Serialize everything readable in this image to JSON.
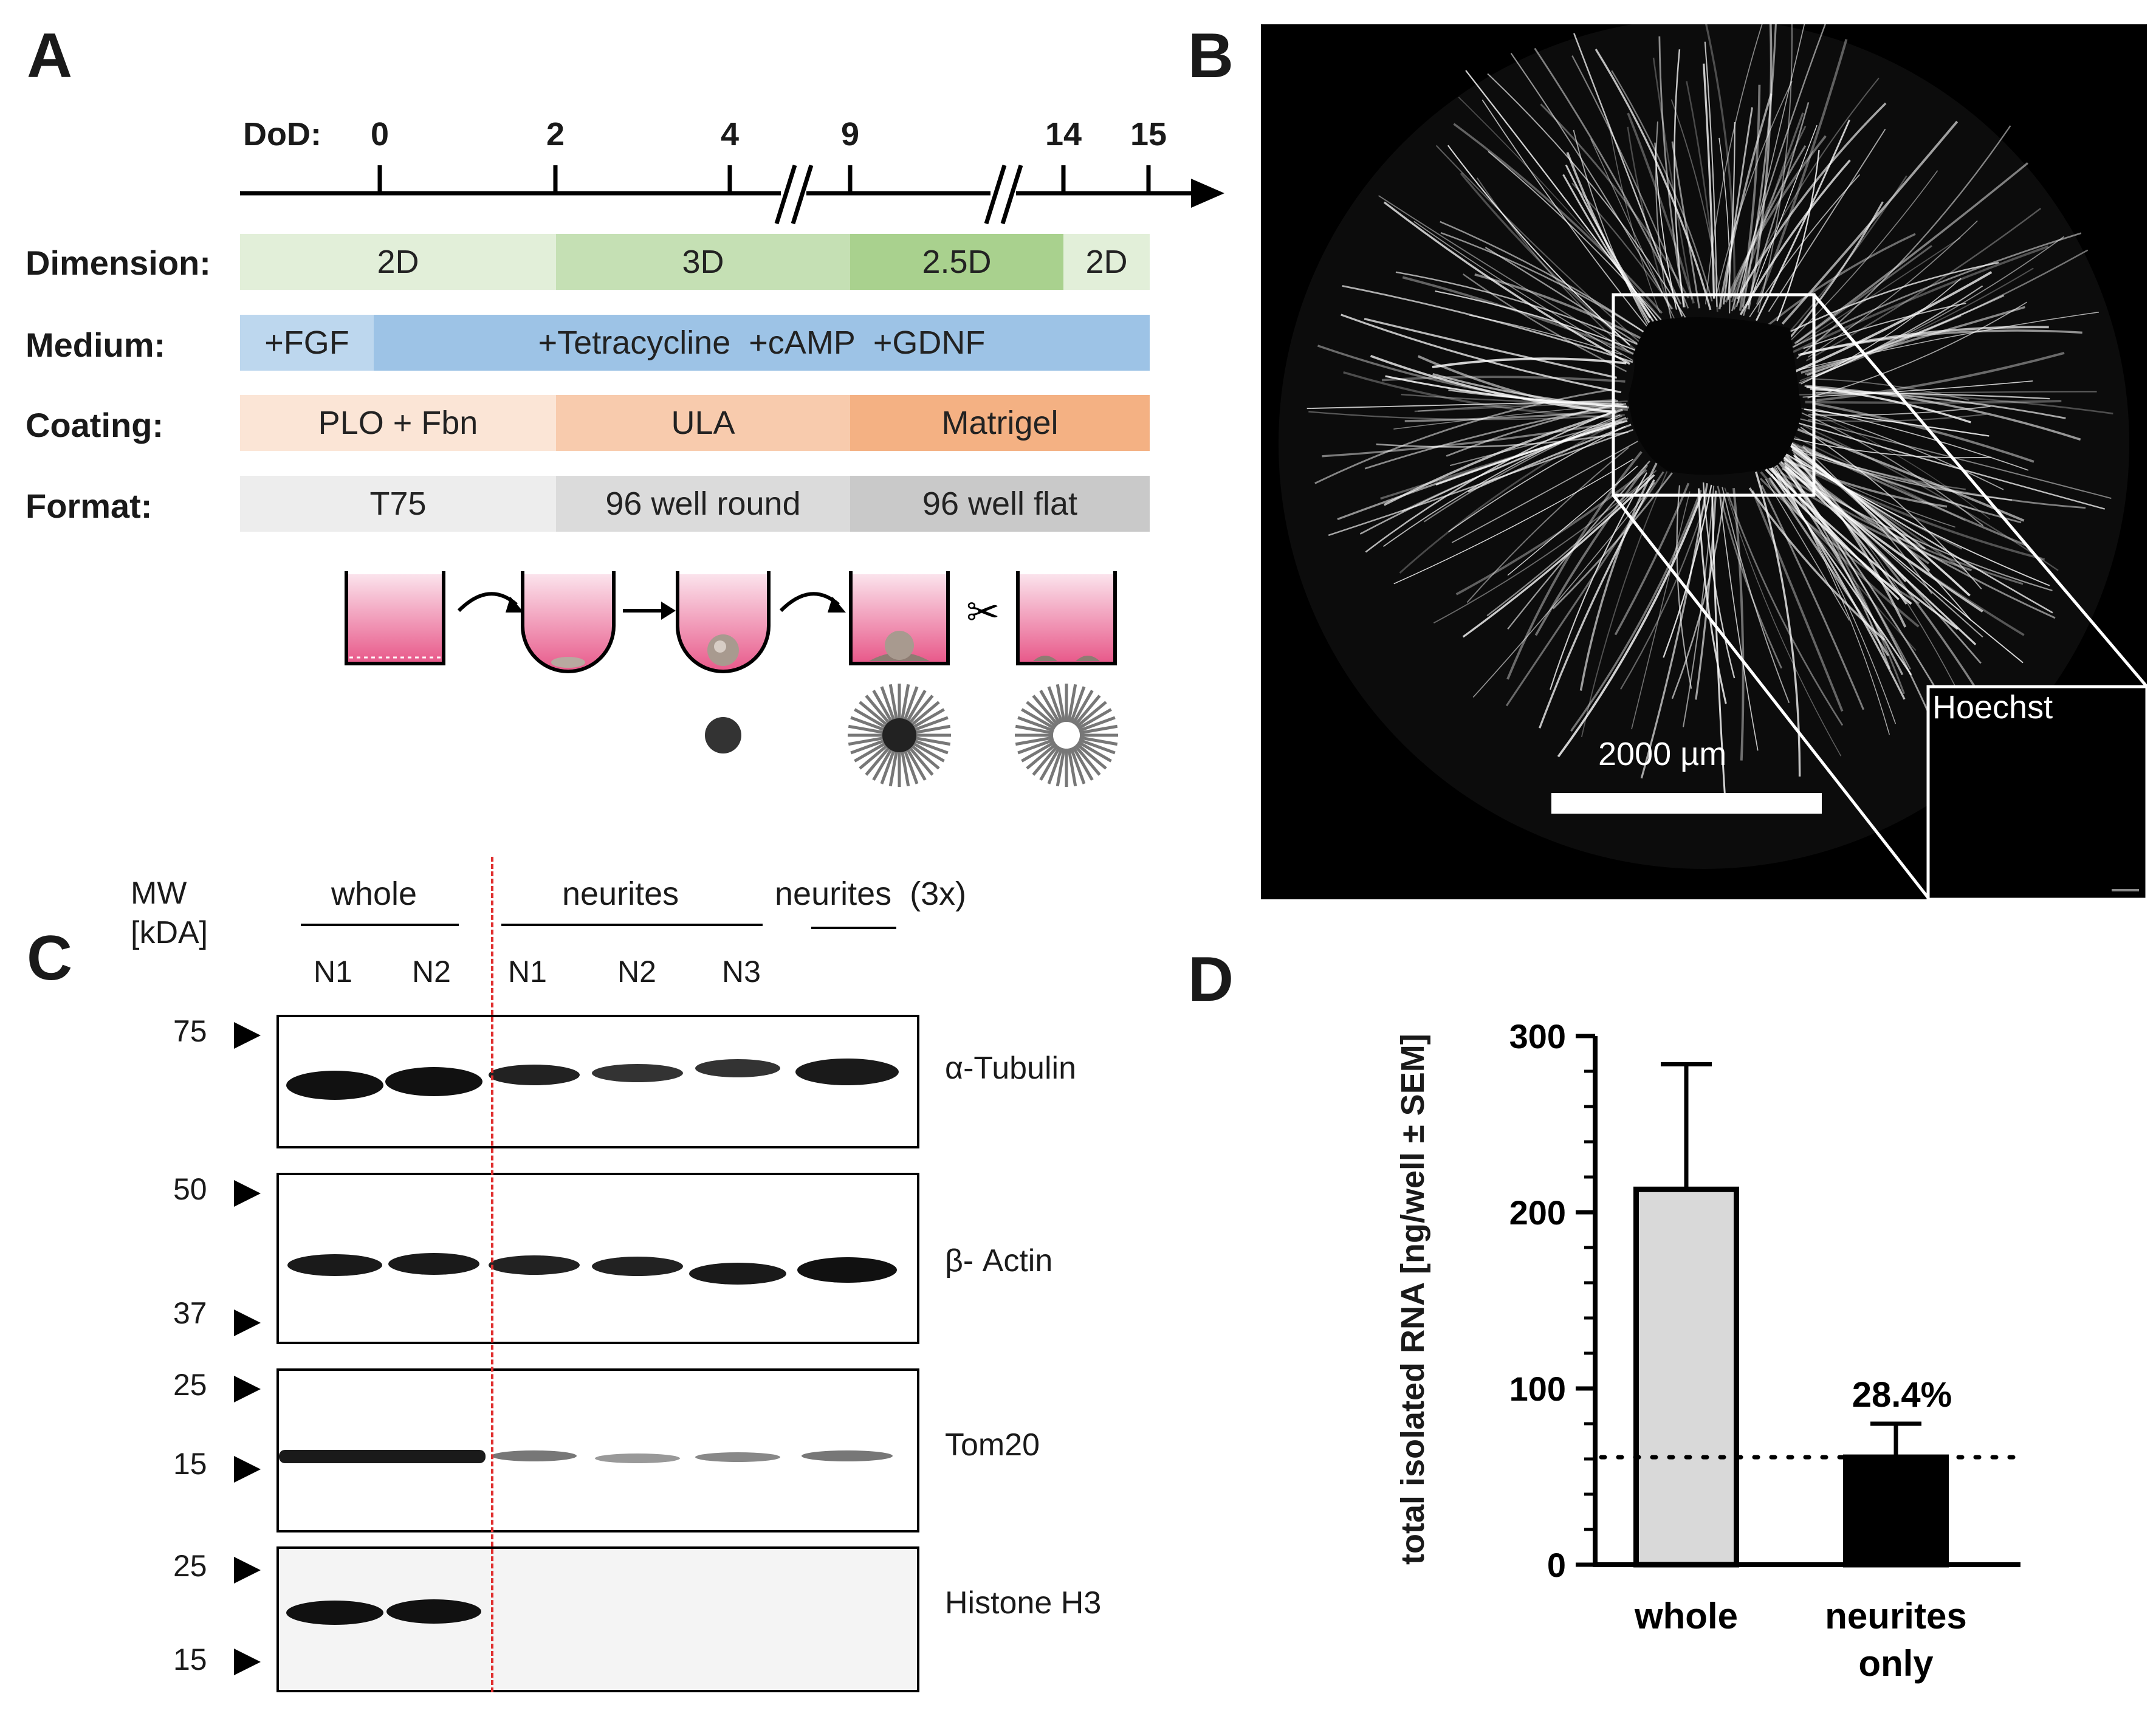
{
  "panels": {
    "a": "A",
    "b": "B",
    "c": "C",
    "d": "D"
  },
  "timeline": {
    "label": "DoD:",
    "ticks": [
      {
        "label": "0"
      },
      {
        "label": "2"
      },
      {
        "label": "4"
      },
      {
        "label": "9"
      },
      {
        "label": "14"
      },
      {
        "label": "15"
      }
    ]
  },
  "rows": {
    "dimension": {
      "label": "Dimension:",
      "segments": [
        {
          "text": "2D",
          "color": "#e2efd9"
        },
        {
          "text": "3D",
          "color": "#c5e0b4"
        },
        {
          "text": "2.5D",
          "color": "#a9d18e"
        },
        {
          "text": "2D",
          "color": "#e2efd9"
        }
      ]
    },
    "medium": {
      "label": "Medium:",
      "segments": [
        {
          "text": "+FGF",
          "color": "#bdd7ee"
        },
        {
          "text": "+Tetracycline  +cAMP  +GDNF",
          "color": "#9dc3e6"
        }
      ]
    },
    "coating": {
      "label": "Coating:",
      "segments": [
        {
          "text": "PLO + Fbn",
          "color": "#fbe5d6"
        },
        {
          "text": "ULA",
          "color": "#f8cbad"
        },
        {
          "text": "Matrigel",
          "color": "#f4b183"
        }
      ]
    },
    "format": {
      "label": "Format:",
      "segments": [
        {
          "text": "T75",
          "color": "#ededed"
        },
        {
          "text": "96 well round",
          "color": "#dbdbdb"
        },
        {
          "text": "96 well flat",
          "color": "#c9c9c9"
        }
      ]
    }
  },
  "microscopy": {
    "scalebar_label": "2000 µm",
    "inset_label": "Hoechst"
  },
  "western": {
    "mw_header": [
      "MW",
      "[kDA]"
    ],
    "groups": [
      {
        "label": "whole"
      },
      {
        "label": "neurites"
      },
      {
        "label": "neurites  (3x)"
      }
    ],
    "lanes": [
      "N1",
      "N2",
      "N1",
      "N2",
      "N3"
    ],
    "blots": [
      {
        "name": "α-Tubulin",
        "markers": [
          "75"
        ]
      },
      {
        "name": "β- Actin",
        "markers": [
          "50",
          "37"
        ]
      },
      {
        "name": "Tom20",
        "markers": [
          "25",
          "15"
        ]
      },
      {
        "name": "Histone H3",
        "markers": [
          "25",
          "15"
        ]
      }
    ]
  },
  "chart_data": {
    "type": "bar",
    "categories": [
      "whole",
      "neurites only"
    ],
    "values": [
      213,
      61
    ],
    "errors": [
      71,
      19
    ],
    "ylabel": "total isolated RNA [ng/well ± SEM]",
    "ylim": [
      0,
      300
    ],
    "yticks": [
      "0",
      "100",
      "200",
      "300"
    ],
    "reference_line": 61,
    "annotation": "28.4%",
    "colors": [
      "#d9d9d9",
      "#000000"
    ]
  }
}
